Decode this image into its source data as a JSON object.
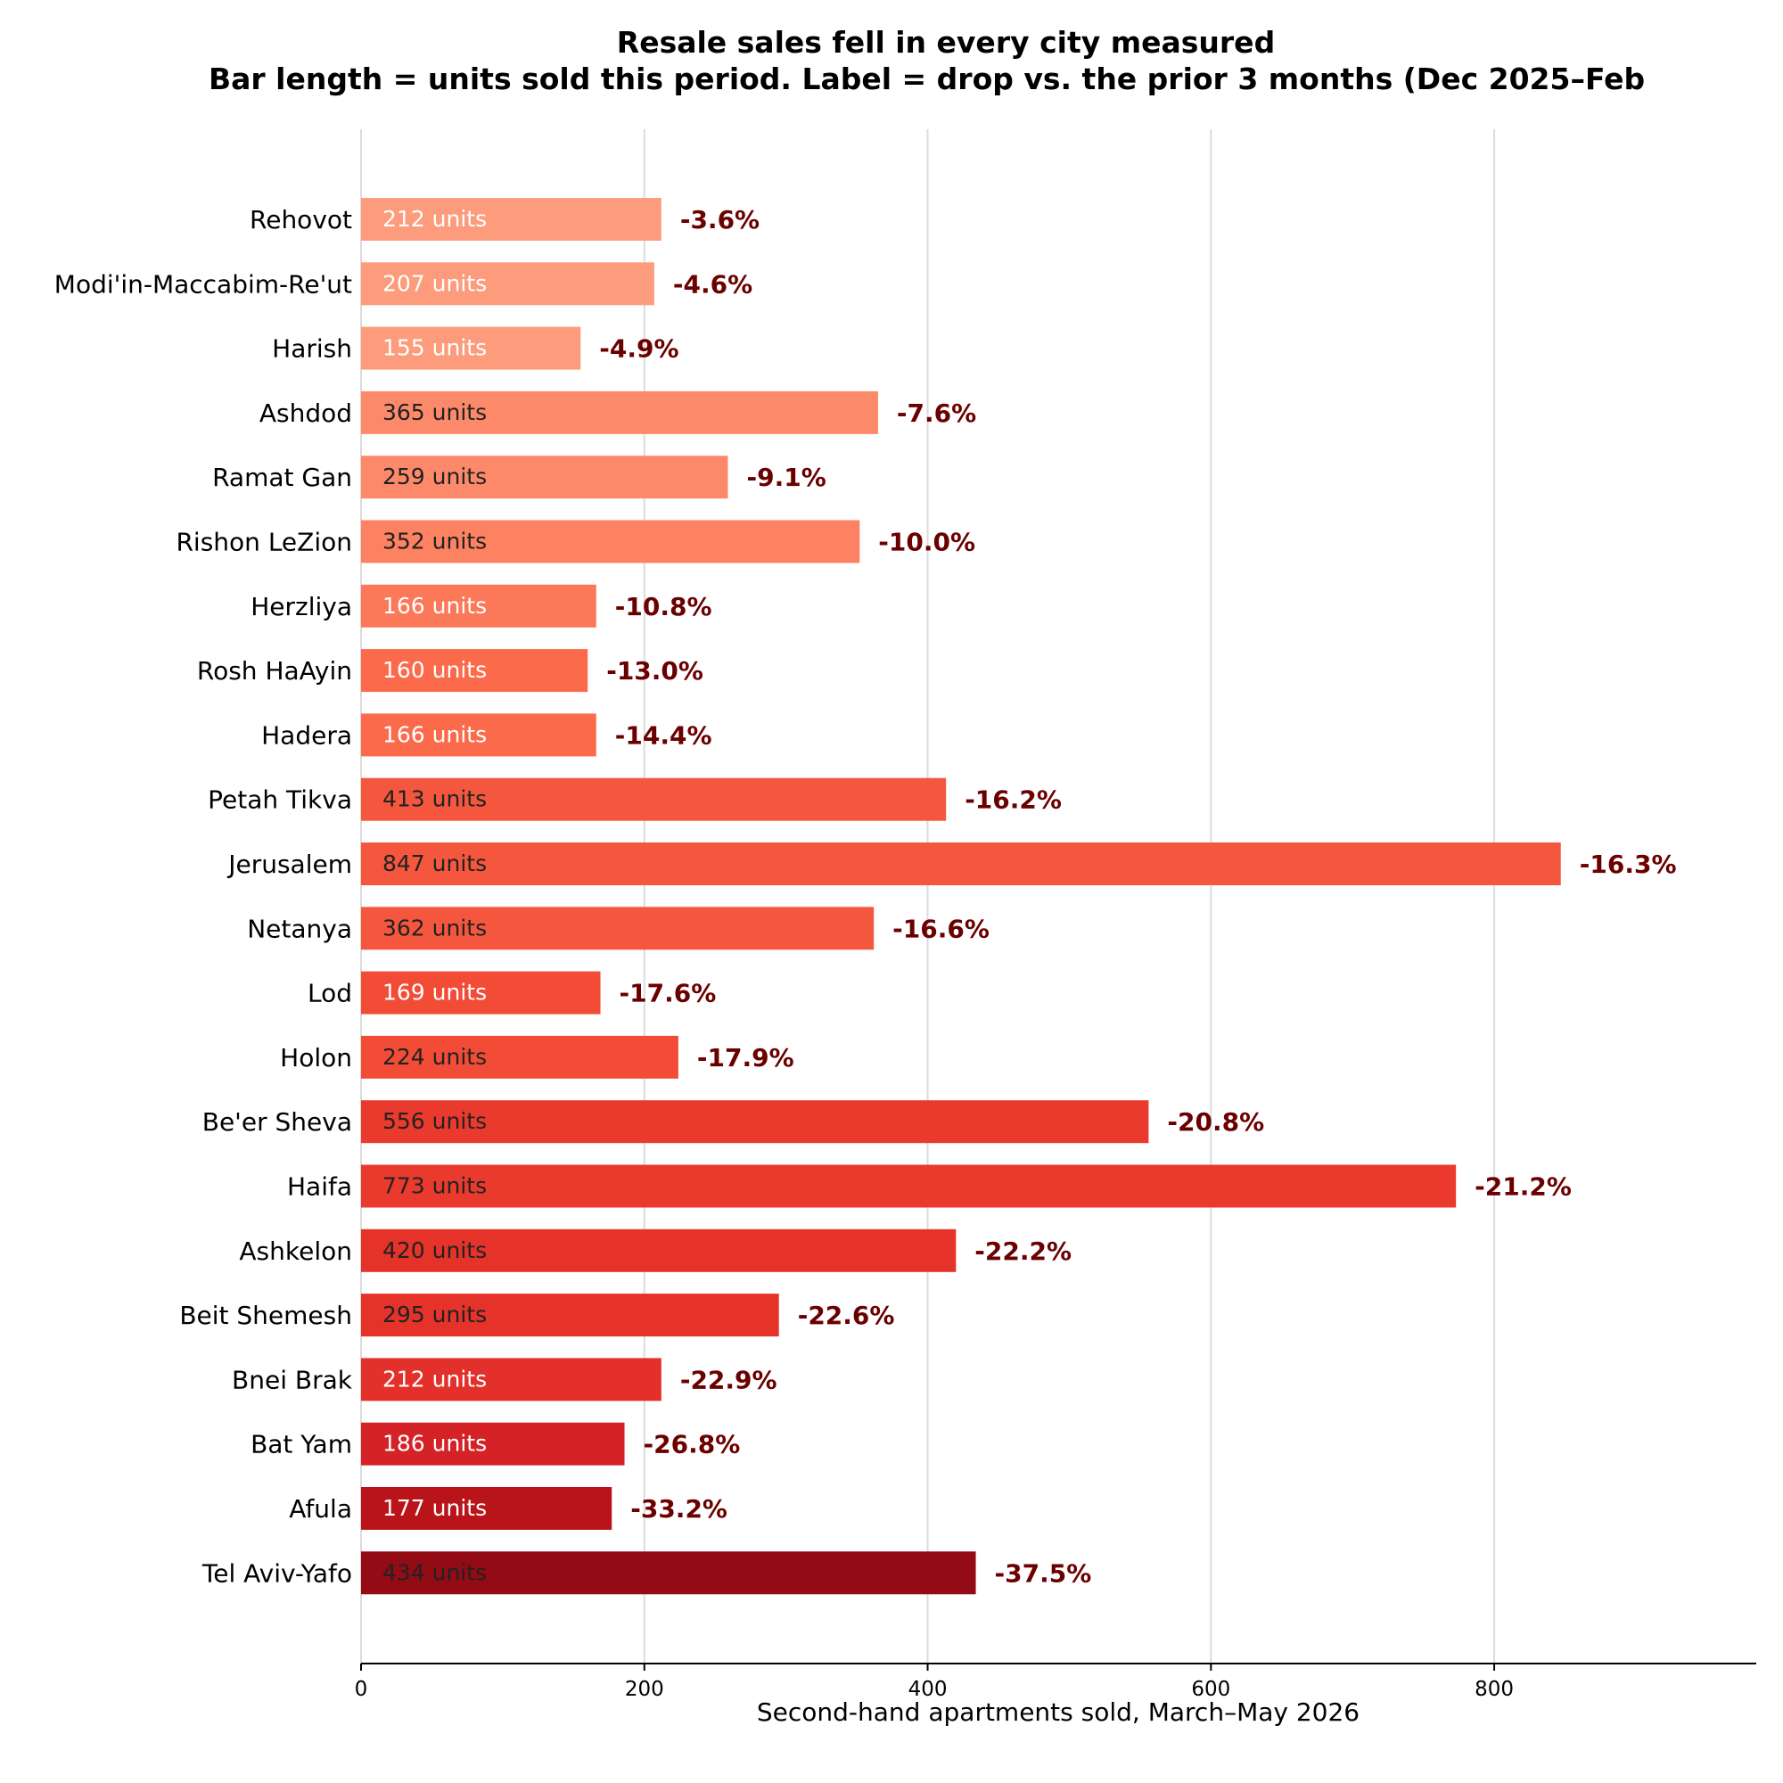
{
  "chart_data": {
    "type": "bar",
    "orientation": "horizontal",
    "title": "Resale sales fell in every city measured",
    "subtitle": "Bar length = units sold this period.  Label = drop vs. the prior 3 months (Dec 2025–Feb",
    "xlabel": "Second-hand apartments sold, March–May 2026",
    "ylabel": "",
    "xlim": [
      0,
      985
    ],
    "x_ticks": [
      0,
      200,
      400,
      600,
      800
    ],
    "grid": "vertical",
    "unit_suffix": " units",
    "categories": [
      "Rehovot",
      "Modi'in-Maccabim-Re'ut",
      "Harish",
      "Ashdod",
      "Ramat Gan",
      "Rishon LeZion",
      "Herzliya",
      "Rosh HaAyin",
      "Hadera",
      "Petah Tikva",
      "Jerusalem",
      "Netanya",
      "Lod",
      "Holon",
      "Be'er Sheva",
      "Haifa",
      "Ashkelon",
      "Beit Shemesh",
      "Bnei Brak",
      "Bat Yam",
      "Afula",
      "Tel Aviv-Yafo"
    ],
    "values": [
      212,
      207,
      155,
      365,
      259,
      352,
      166,
      160,
      166,
      413,
      847,
      362,
      169,
      224,
      556,
      773,
      420,
      295,
      212,
      186,
      177,
      434
    ],
    "changes": [
      "-3.6%",
      "-4.6%",
      "-4.9%",
      "-7.6%",
      "-9.1%",
      "-10.0%",
      "-10.8%",
      "-13.0%",
      "-14.4%",
      "-16.2%",
      "-16.3%",
      "-16.6%",
      "-17.6%",
      "-17.9%",
      "-20.8%",
      "-21.2%",
      "-22.2%",
      "-22.6%",
      "-22.9%",
      "-26.8%",
      "-33.2%",
      "-37.5%"
    ],
    "colors": [
      "#fc9c7d",
      "#fc9c7d",
      "#fc9c7d",
      "#fc8a6a",
      "#fc8a6a",
      "#fc8262",
      "#fb7858",
      "#fb6b4b",
      "#fb6b4b",
      "#f5573e",
      "#f5573e",
      "#f5573e",
      "#f24c37",
      "#f24c37",
      "#ea3a2d",
      "#ea3a2d",
      "#e6332a",
      "#e6332a",
      "#e3302a",
      "#d42227",
      "#b91419",
      "#930b15"
    ],
    "units_label_colors": [
      "#ffffff",
      "#ffffff",
      "#ffffff",
      "#222222",
      "#222222",
      "#222222",
      "#ffffff",
      "#ffffff",
      "#ffffff",
      "#222222",
      "#222222",
      "#222222",
      "#ffffff",
      "#222222",
      "#222222",
      "#222222",
      "#222222",
      "#222222",
      "#ffffff",
      "#ffffff",
      "#ffffff",
      "#222222"
    ],
    "change_label_color": "#6b0000"
  }
}
